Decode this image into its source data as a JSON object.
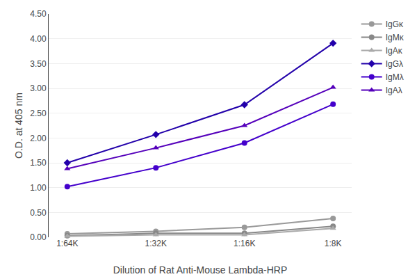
{
  "chart_data": {
    "type": "line",
    "xlabel": "Dilution of Rat Anti-Mouse Lambda-HRP",
    "ylabel": "O.D. at 405 nm",
    "categories": [
      "1:64K",
      "1:32K",
      "1:16K",
      "1:8K"
    ],
    "series": [
      {
        "name": "IgGκ",
        "color": "#999999",
        "marker": "circle",
        "values": [
          0.07,
          0.12,
          0.2,
          0.38
        ]
      },
      {
        "name": "IgMκ",
        "color": "#888888",
        "marker": "circle",
        "values": [
          0.03,
          0.08,
          0.08,
          0.22
        ]
      },
      {
        "name": "IgAκ",
        "color": "#aaaaaa",
        "marker": "triangle-up",
        "values": [
          0.02,
          0.05,
          0.05,
          0.18
        ]
      },
      {
        "name": "IgGλ",
        "color": "#2200aa",
        "marker": "diamond",
        "values": [
          1.5,
          2.07,
          2.67,
          3.91
        ]
      },
      {
        "name": "IgMλ",
        "color": "#4400cc",
        "marker": "circle",
        "values": [
          1.02,
          1.4,
          1.9,
          2.68
        ]
      },
      {
        "name": "IgAλ",
        "color": "#5500bb",
        "marker": "triangle-up",
        "values": [
          1.38,
          1.8,
          2.25,
          3.02
        ]
      }
    ],
    "ylim": [
      0,
      4.5
    ],
    "yticks": [
      {
        "value": 0,
        "label": "0.00"
      },
      {
        "value": 0.5,
        "label": "0.50"
      },
      {
        "value": 1,
        "label": "1.00"
      },
      {
        "value": 1.5,
        "label": "1.50"
      },
      {
        "value": 2,
        "label": "2.00"
      },
      {
        "value": 2.5,
        "label": "2.50"
      },
      {
        "value": 3,
        "label": "3.00"
      },
      {
        "value": 3.5,
        "label": "3.50"
      },
      {
        "value": 4,
        "label": "4.00"
      },
      {
        "value": 4.5,
        "label": "4.50"
      }
    ],
    "grid": true,
    "legend": "right"
  }
}
